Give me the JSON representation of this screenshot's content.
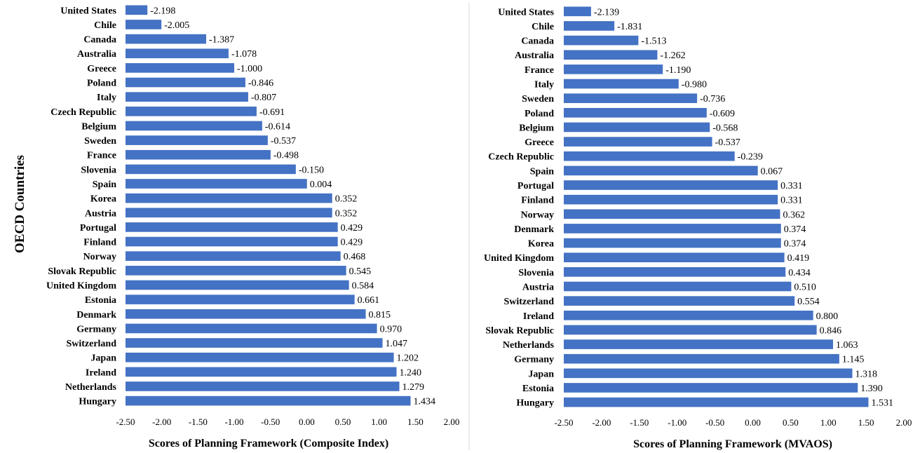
{
  "y_axis_title": "OECD Countries",
  "colors": {
    "bar": "#4472C4",
    "divider": "#d9d9d9"
  },
  "chart_data": [
    {
      "type": "bar",
      "orientation": "horizontal",
      "xlabel": "Scores of Planning Framework (Composite Index)",
      "ylabel": "OECD Countries",
      "xlim": [
        -2.5,
        2.0
      ],
      "xticks": [
        -2.5,
        -2.0,
        -1.5,
        -1.0,
        -0.5,
        0.0,
        0.5,
        1.0,
        1.5,
        2.0
      ],
      "xtick_labels": [
        "-2.50",
        "-2.00",
        "-1.50",
        "-1.00",
        "-0.50",
        "0.00",
        "0.50",
        "1.00",
        "1.50",
        "2.00"
      ],
      "grid": false,
      "categories": [
        "United States",
        "Chile",
        "Canada",
        "Australia",
        "Greece",
        "Poland",
        "Italy",
        "Czech Republic",
        "Belgium",
        "Sweden",
        "France",
        "Slovenia",
        "Spain",
        "Korea",
        "Austria",
        "Portugal",
        "Finland",
        "Norway",
        "Slovak Republic",
        "United Kingdom",
        "Estonia",
        "Denmark",
        "Germany",
        "Switzerland",
        "Japan",
        "Ireland",
        "Netherlands",
        "Hungary"
      ],
      "values": [
        -2.198,
        -2.005,
        -1.387,
        -1.078,
        -1.0,
        -0.846,
        -0.807,
        -0.691,
        -0.614,
        -0.537,
        -0.498,
        -0.15,
        0.004,
        0.352,
        0.352,
        0.429,
        0.429,
        0.468,
        0.545,
        0.584,
        0.661,
        0.815,
        0.97,
        1.047,
        1.202,
        1.24,
        1.279,
        1.434
      ],
      "value_labels": [
        "-2.198",
        "-2.005",
        "-1.387",
        "-1.078",
        "-1.000",
        "-0.846",
        "-0.807",
        "-0.691",
        "-0.614",
        "-0.537",
        "-0.498",
        "-0.150",
        "0.004",
        "0.352",
        "0.352",
        "0.429",
        "0.429",
        "0.468",
        "0.545",
        "0.584",
        "0.661",
        "0.815",
        "0.970",
        "1.047",
        "1.202",
        "1.240",
        "1.279",
        "1.434"
      ]
    },
    {
      "type": "bar",
      "orientation": "horizontal",
      "xlabel": "Scores of Planning Framework (MVAOS)",
      "ylabel": "",
      "xlim": [
        -2.5,
        2.0
      ],
      "xticks": [
        -2.5,
        -2.0,
        -1.5,
        -1.0,
        -0.5,
        0.0,
        0.5,
        1.0,
        1.5,
        2.0
      ],
      "xtick_labels": [
        "-2.50",
        "-2.00",
        "-1.50",
        "-1.00",
        "-0.50",
        "0.00",
        "0.50",
        "1.00",
        "1.50",
        "2.00"
      ],
      "grid": false,
      "categories": [
        "United States",
        "Chile",
        "Canada",
        "Australia",
        "France",
        "Italy",
        "Sweden",
        "Poland",
        "Belgium",
        "Greece",
        "Czech Republic",
        "Spain",
        "Portugal",
        "Finland",
        "Norway",
        "Denmark",
        "Korea",
        "United Kingdom",
        "Slovenia",
        "Austria",
        "Switzerland",
        "Ireland",
        "Slovak Republic",
        "Netherlands",
        "Germany",
        "Japan",
        "Estonia",
        "Hungary"
      ],
      "values": [
        -2.139,
        -1.831,
        -1.513,
        -1.262,
        -1.19,
        -0.98,
        -0.736,
        -0.609,
        -0.568,
        -0.537,
        -0.239,
        0.067,
        0.331,
        0.331,
        0.362,
        0.374,
        0.374,
        0.419,
        0.434,
        0.51,
        0.554,
        0.8,
        0.846,
        1.063,
        1.145,
        1.318,
        1.39,
        1.531
      ],
      "value_labels": [
        "-2.139",
        "-1.831",
        "-1.513",
        "-1.262",
        "-1.190",
        "-0.980",
        "-0.736",
        "-0.609",
        "-0.568",
        "-0.537",
        "-0.239",
        "0.067",
        "0.331",
        "0.331",
        "0.362",
        "0.374",
        "0.374",
        "0.419",
        "0.434",
        "0.510",
        "0.554",
        "0.800",
        "0.846",
        "1.063",
        "1.145",
        "1.318",
        "1.390",
        "1.531"
      ]
    }
  ]
}
